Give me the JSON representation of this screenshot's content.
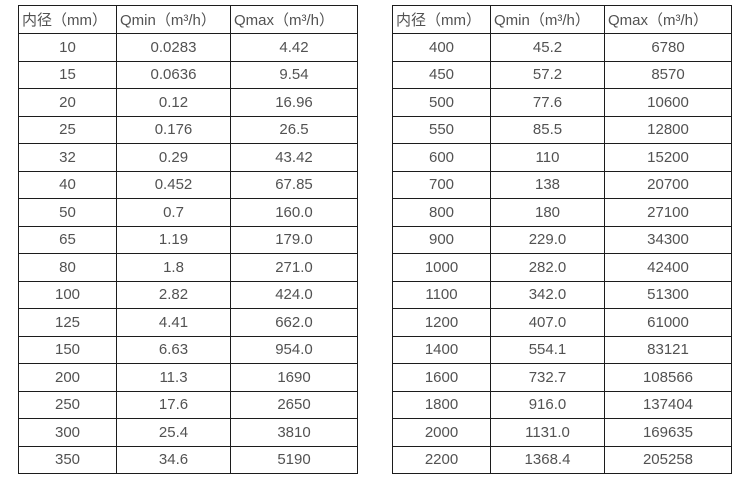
{
  "colors": {
    "background": "#ffffff",
    "border": "#1c1c1c",
    "text": "#525252"
  },
  "chart_data": [
    {
      "type": "table",
      "title": "",
      "columns": [
        "内径（mm）",
        "Qmin（m³/h）",
        "Qmax（m³/h）"
      ],
      "rows": [
        [
          "10",
          "0.0283",
          "4.42"
        ],
        [
          "15",
          "0.0636",
          "9.54"
        ],
        [
          "20",
          "0.12",
          "16.96"
        ],
        [
          "25",
          "0.176",
          "26.5"
        ],
        [
          "32",
          "0.29",
          "43.42"
        ],
        [
          "40",
          "0.452",
          "67.85"
        ],
        [
          "50",
          "0.7",
          "160.0"
        ],
        [
          "65",
          "1.19",
          "179.0"
        ],
        [
          "80",
          "1.8",
          "271.0"
        ],
        [
          "100",
          "2.82",
          "424.0"
        ],
        [
          "125",
          "4.41",
          "662.0"
        ],
        [
          "150",
          "6.63",
          "954.0"
        ],
        [
          "200",
          "11.3",
          "1690"
        ],
        [
          "250",
          "17.6",
          "2650"
        ],
        [
          "300",
          "25.4",
          "3810"
        ],
        [
          "350",
          "34.6",
          "5190"
        ]
      ]
    },
    {
      "type": "table",
      "title": "",
      "columns": [
        "内径（mm）",
        "Qmin（m³/h）",
        "Qmax（m³/h）"
      ],
      "rows": [
        [
          "400",
          "45.2",
          "6780"
        ],
        [
          "450",
          "57.2",
          "8570"
        ],
        [
          "500",
          "77.6",
          "10600"
        ],
        [
          "550",
          "85.5",
          "12800"
        ],
        [
          "600",
          "110",
          "15200"
        ],
        [
          "700",
          "138",
          "20700"
        ],
        [
          "800",
          "180",
          "27100"
        ],
        [
          "900",
          "229.0",
          "34300"
        ],
        [
          "1000",
          "282.0",
          "42400"
        ],
        [
          "1100",
          "342.0",
          "51300"
        ],
        [
          "1200",
          "407.0",
          "61000"
        ],
        [
          "1400",
          "554.1",
          "83121"
        ],
        [
          "1600",
          "732.7",
          "108566"
        ],
        [
          "1800",
          "916.0",
          "137404"
        ],
        [
          "2000",
          "1131.0",
          "169635"
        ],
        [
          "2200",
          "1368.4",
          "205258"
        ]
      ]
    }
  ]
}
